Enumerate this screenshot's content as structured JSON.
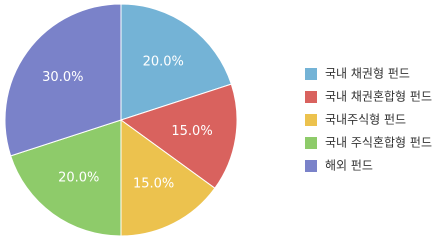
{
  "chart_data": {
    "type": "pie",
    "categories": [
      "국내 채권형 펀드",
      "국내 채권혼합형 펀드",
      "국내주식형 펀드",
      "국내 주식혼합형 펀드",
      "해외 펀드"
    ],
    "values": [
      20,
      15,
      15,
      20,
      30
    ],
    "value_labels": [
      "20.0%",
      "15.0%",
      "15.0%",
      "20.0%",
      "30.0%"
    ],
    "colors": [
      "#74b3d6",
      "#d9625e",
      "#ecc24e",
      "#8ecb6a",
      "#7a82c9"
    ]
  }
}
